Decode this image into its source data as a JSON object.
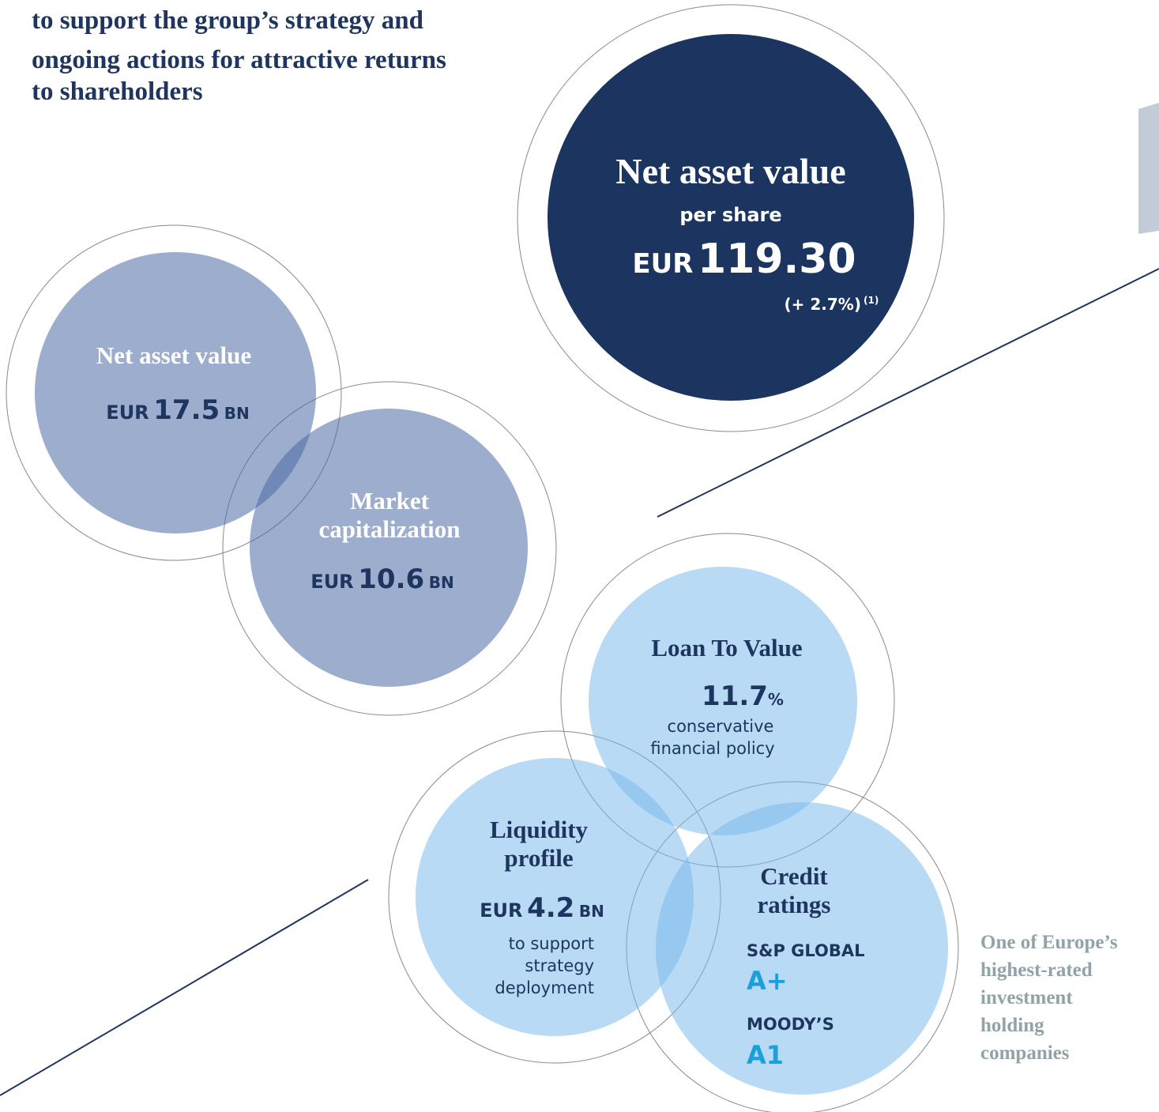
{
  "intro": {
    "lines": [
      "to support the group’s strategy and",
      "ongoing actions for attractive returns",
      "to shareholders"
    ]
  },
  "nav_per_share": {
    "title": "Net asset value",
    "subtitle": "per share",
    "currency": "EUR",
    "value": "119.30",
    "change": "(+ 2.7%)",
    "note": "(1)"
  },
  "nav": {
    "title": "Net asset value",
    "currency": "EUR",
    "value": "17.5",
    "unit": "BN"
  },
  "market_cap": {
    "title_lines": [
      "Market",
      "capitalization"
    ],
    "currency": "EUR",
    "value": "10.6",
    "unit": "BN"
  },
  "ltv": {
    "title": "Loan To Value",
    "value": "11.7",
    "unit": "%",
    "note_lines": [
      "conservative",
      "financial policy"
    ]
  },
  "liquidity": {
    "title_lines": [
      "Liquidity",
      "profile"
    ],
    "currency": "EUR",
    "value": "4.2",
    "unit": "BN",
    "note_lines": [
      "to support",
      "strategy",
      "deployment"
    ]
  },
  "credit": {
    "title_lines": [
      "Credit",
      "ratings"
    ],
    "ratings": [
      {
        "agency": "S&P GLOBAL",
        "rating": "A+"
      },
      {
        "agency": "MOODY’S",
        "rating": "A1"
      }
    ]
  },
  "side_note": {
    "lines": [
      "One of Europe’s",
      "highest-rated",
      "investment",
      "holding",
      "companies"
    ]
  }
}
